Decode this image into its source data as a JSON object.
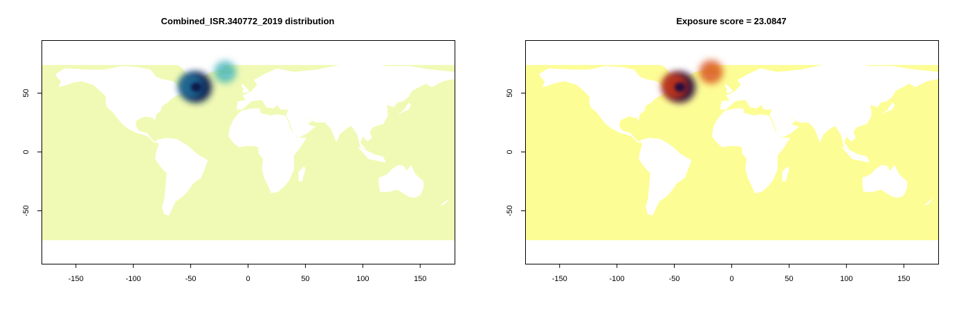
{
  "chart_data": [
    {
      "type": "heatmap",
      "title": "Combined_ISR.340772_2019 distribution",
      "xlabel": "",
      "ylabel": "",
      "xlim": [
        -180,
        180
      ],
      "ylim": [
        -95,
        95
      ],
      "xticks": [
        -150,
        -100,
        -50,
        0,
        50,
        100,
        150
      ],
      "yticks": [
        50,
        0,
        -50
      ],
      "ocean_color": "#f0fab4",
      "land_color": "#ffffff",
      "hotspots": [
        {
          "lon": -45,
          "lat": 55,
          "intensity": 1.0,
          "color": "#0c1c4e"
        },
        {
          "lon": -50,
          "lat": 56,
          "intensity": 0.7,
          "color": "#1f6f9a"
        },
        {
          "lon": -20,
          "lat": 68,
          "intensity": 0.5,
          "color": "#3cb0b5"
        }
      ]
    },
    {
      "type": "heatmap",
      "title": "Exposure score = 23.0847",
      "xlabel": "",
      "ylabel": "",
      "xlim": [
        -180,
        180
      ],
      "ylim": [
        -95,
        95
      ],
      "xticks": [
        -150,
        -100,
        -50,
        0,
        50,
        100,
        150
      ],
      "yticks": [
        50,
        0,
        -50
      ],
      "ocean_color": "#fdfd96",
      "land_color": "#ffffff",
      "hotspots": [
        {
          "lon": -45,
          "lat": 55,
          "intensity": 1.0,
          "color": "#2a0a3c"
        },
        {
          "lon": -50,
          "lat": 56,
          "intensity": 0.75,
          "color": "#c8361a"
        },
        {
          "lon": -18,
          "lat": 68,
          "intensity": 0.6,
          "color": "#d8501a"
        }
      ]
    }
  ]
}
